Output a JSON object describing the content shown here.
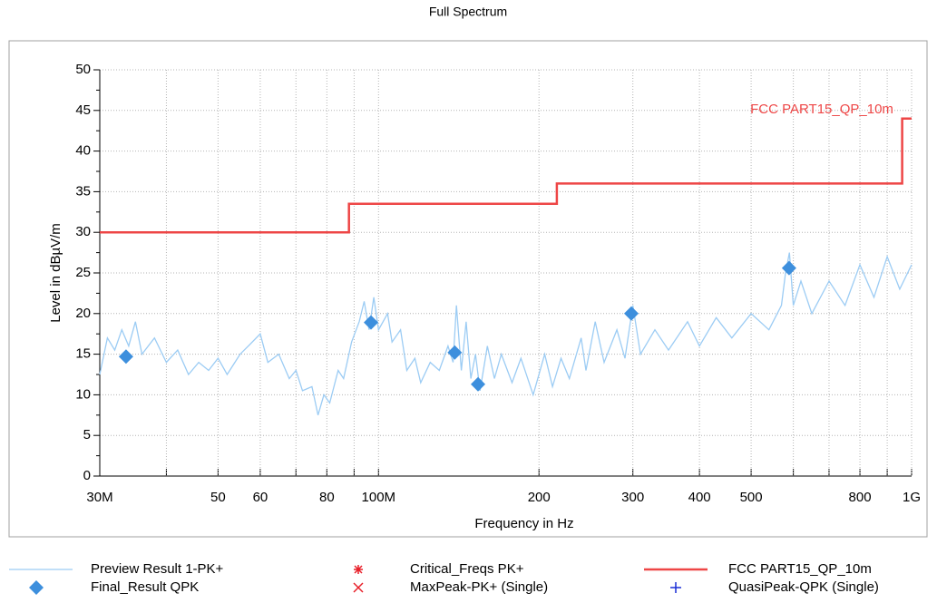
{
  "chart_data": {
    "type": "line",
    "title": "Full Spectrum",
    "x_label": "Frequency in Hz",
    "y_label": "Level in dBµV/m",
    "xscale": "log",
    "grid": true,
    "xlim": [
      30000000,
      1000000000
    ],
    "ylim": [
      0,
      50
    ],
    "xticks": [
      {
        "value": 30000000,
        "label": "30M"
      },
      {
        "value": 50000000,
        "label": "50"
      },
      {
        "value": 60000000,
        "label": "60"
      },
      {
        "value": 80000000,
        "label": "80"
      },
      {
        "value": 100000000,
        "label": "100M"
      },
      {
        "value": 200000000,
        "label": "200"
      },
      {
        "value": 300000000,
        "label": "300"
      },
      {
        "value": 400000000,
        "label": "400"
      },
      {
        "value": 500000000,
        "label": "500"
      },
      {
        "value": 800000000,
        "label": "800"
      },
      {
        "value": 1000000000,
        "label": "1G"
      }
    ],
    "xminorticks": [
      40000000,
      70000000,
      90000000,
      600000000,
      700000000,
      900000000
    ],
    "yticks": [
      0,
      5,
      10,
      15,
      20,
      25,
      30,
      35,
      40,
      45,
      50
    ],
    "yminorticks": [
      2.5,
      7.5,
      12.5,
      17.5,
      22.5,
      27.5,
      32.5,
      37.5,
      42.5,
      47.5
    ],
    "annotation": "FCC PART15_QP_10m",
    "series": [
      {
        "name": "Preview Result 1-PK+",
        "color": "#9cccf4",
        "marker": "line",
        "x": [
          30000000,
          31000000,
          32000000,
          33000000,
          34000000,
          35000000,
          36000000,
          38000000,
          40000000,
          42000000,
          44000000,
          46000000,
          48000000,
          50000000,
          52000000,
          55000000,
          57000000,
          60000000,
          62000000,
          65000000,
          68000000,
          70000000,
          72000000,
          75000000,
          77000000,
          79000000,
          81000000,
          84000000,
          86000000,
          89000000,
          92000000,
          94000000,
          96000000,
          98000000,
          100000000,
          104000000,
          106000000,
          110000000,
          113000000,
          117000000,
          120000000,
          125000000,
          130000000,
          135000000,
          138000000,
          140000000,
          143000000,
          146000000,
          149000000,
          152000000,
          155000000,
          160000000,
          165000000,
          170000000,
          178000000,
          185000000,
          195000000,
          205000000,
          212000000,
          220000000,
          228000000,
          240000000,
          245000000,
          255000000,
          265000000,
          280000000,
          290000000,
          300000000,
          310000000,
          330000000,
          350000000,
          380000000,
          400000000,
          430000000,
          460000000,
          500000000,
          540000000,
          570000000,
          580000000,
          590000000,
          600000000,
          620000000,
          650000000,
          700000000,
          750000000,
          800000000,
          850000000,
          900000000,
          950000000,
          1000000000
        ],
        "values": [
          12.5,
          17,
          15.5,
          18,
          16,
          19,
          15,
          17,
          14,
          15.5,
          12.5,
          14,
          13,
          14.5,
          12.5,
          15,
          16,
          17.5,
          14,
          15,
          12,
          13,
          10.5,
          11,
          7.5,
          10,
          9,
          13,
          12,
          16.5,
          19,
          21.5,
          18,
          22,
          18,
          20,
          16.5,
          18,
          13,
          14.5,
          11.5,
          14,
          13,
          16,
          14,
          21,
          13,
          19,
          12,
          15,
          10.5,
          16,
          12,
          15,
          11.5,
          14.5,
          10,
          15,
          11,
          14.5,
          12,
          17,
          13,
          19,
          14,
          18,
          14.5,
          21,
          15,
          18,
          15.5,
          19,
          16,
          19.5,
          17,
          20,
          18,
          21,
          25,
          27.5,
          21,
          24,
          20,
          24,
          21,
          26,
          22,
          27,
          23,
          26
        ]
      },
      {
        "name": "Final_Result QPK",
        "color": "#3d8fdd",
        "marker": "diamond",
        "x": [
          33600000,
          96800000,
          139000000,
          153700000,
          298000000,
          589000000
        ],
        "values": [
          14.7,
          18.9,
          15.2,
          11.3,
          20.0,
          25.6
        ]
      },
      {
        "name": "Critical_Freqs PK+",
        "color": "#e8202a",
        "marker": "asterisk",
        "x": [],
        "values": []
      },
      {
        "name": "MaxPeak-PK+ (Single)",
        "color": "#e8202a",
        "marker": "x",
        "x": [],
        "values": []
      },
      {
        "name": "FCC PART15_QP_10m",
        "color": "#ee4646",
        "marker": "line",
        "x": [
          30000000,
          88000000,
          88000000,
          216000000,
          216000000,
          960000000,
          960000000,
          1000000000
        ],
        "values": [
          30,
          30,
          33.5,
          33.5,
          36,
          36,
          44,
          44
        ]
      },
      {
        "name": "QuasiPeak-QPK (Single)",
        "color": "#1a2fd6",
        "marker": "plus",
        "x": [],
        "values": []
      }
    ]
  }
}
